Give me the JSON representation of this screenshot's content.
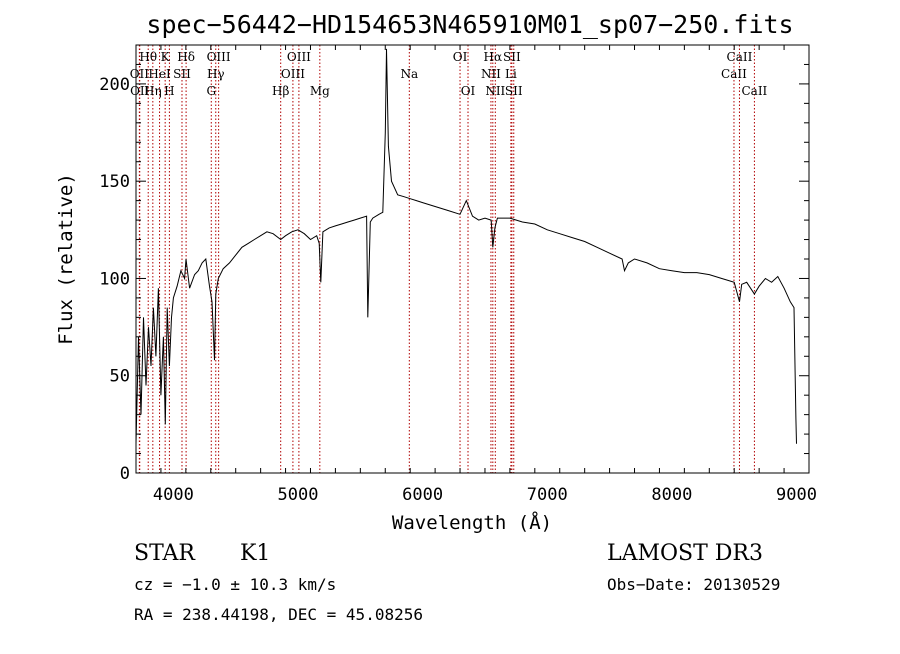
{
  "chart_data": {
    "type": "line",
    "title": "spec−56442−HD154653N465910M01_sp07−250.fits",
    "xlabel": "Wavelength (Å)",
    "ylabel": "Flux (relative)",
    "xlim": [
      3700,
      9100
    ],
    "ylim": [
      0,
      220
    ],
    "xticks": [
      4000,
      5000,
      6000,
      7000,
      8000,
      9000
    ],
    "yticks": [
      0,
      50,
      100,
      150,
      200
    ],
    "series": [
      {
        "name": "spectrum",
        "x": [
          3700,
          3720,
          3740,
          3760,
          3780,
          3800,
          3820,
          3840,
          3860,
          3880,
          3900,
          3920,
          3935,
          3950,
          3968,
          3985,
          4000,
          4030,
          4060,
          4090,
          4101,
          4130,
          4170,
          4200,
          4230,
          4260,
          4290,
          4310,
          4330,
          4340,
          4360,
          4400,
          4450,
          4500,
          4550,
          4600,
          4650,
          4700,
          4750,
          4800,
          4861,
          4900,
          4950,
          5000,
          5050,
          5100,
          5150,
          5170,
          5183,
          5200,
          5250,
          5300,
          5350,
          5400,
          5450,
          5500,
          5550,
          5560,
          5580,
          5600,
          5650,
          5680,
          5700,
          5710,
          5725,
          5750,
          5800,
          5850,
          5900,
          5950,
          6000,
          6100,
          6200,
          6300,
          6350,
          6400,
          6450,
          6500,
          6550,
          6563,
          6580,
          6600,
          6700,
          6800,
          6900,
          7000,
          7100,
          7200,
          7300,
          7400,
          7500,
          7600,
          7620,
          7650,
          7700,
          7800,
          7900,
          8000,
          8100,
          8200,
          8300,
          8400,
          8450,
          8500,
          8542,
          8560,
          8600,
          8662,
          8700,
          8750,
          8800,
          8850,
          8900,
          8950,
          8980,
          8995,
          9000
        ],
        "values": [
          15,
          70,
          30,
          80,
          45,
          75,
          55,
          85,
          60,
          95,
          40,
          70,
          25,
          85,
          55,
          80,
          90,
          96,
          104,
          100,
          110,
          95,
          102,
          104,
          108,
          110,
          96,
          88,
          58,
          92,
          100,
          105,
          108,
          112,
          116,
          118,
          120,
          122,
          124,
          123,
          120,
          122,
          124,
          125,
          123,
          120,
          122,
          118,
          98,
          124,
          126,
          127,
          128,
          129,
          130,
          131,
          132,
          80,
          129,
          131,
          133,
          134,
          175,
          218,
          168,
          150,
          143,
          142,
          141,
          140,
          139,
          137,
          135,
          133,
          140,
          132,
          130,
          131,
          130,
          116,
          126,
          131,
          131,
          129,
          128,
          125,
          123,
          121,
          119,
          116,
          113,
          110,
          104,
          108,
          110,
          108,
          105,
          104,
          103,
          103,
          102,
          100,
          99,
          98,
          88,
          97,
          98,
          92,
          96,
          100,
          98,
          101,
          95,
          88,
          85,
          28,
          15
        ]
      }
    ],
    "emission_lines": [
      {
        "label": "Hθ",
        "x": 3798,
        "row": 0
      },
      {
        "label": "OII",
        "x": 3727,
        "row": 1
      },
      {
        "label": "OII",
        "x": 3730,
        "row": 2
      },
      {
        "label": "Hη",
        "x": 3835,
        "row": 2
      },
      {
        "label": "HeI",
        "x": 3889,
        "row": 1
      },
      {
        "label": "K",
        "x": 3934,
        "row": 0
      },
      {
        "label": "H",
        "x": 3968,
        "row": 2
      },
      {
        "label": "SII",
        "x": 4069,
        "row": 1
      },
      {
        "label": "Hδ",
        "x": 4102,
        "row": 0
      },
      {
        "label": "OIII",
        "x": 4363,
        "row": 0
      },
      {
        "label": "Hγ",
        "x": 4340,
        "row": 1
      },
      {
        "label": "G",
        "x": 4304,
        "row": 2
      },
      {
        "label": "OIII",
        "x": 5007,
        "row": 0
      },
      {
        "label": "OIII",
        "x": 4959,
        "row": 1
      },
      {
        "label": "Hβ",
        "x": 4861,
        "row": 2
      },
      {
        "label": "Mg",
        "x": 5175,
        "row": 2
      },
      {
        "label": "Na",
        "x": 5893,
        "row": 1
      },
      {
        "label": "OI",
        "x": 6300,
        "row": 0
      },
      {
        "label": "OI",
        "x": 6364,
        "row": 2
      },
      {
        "label": "Hα",
        "x": 6563,
        "row": 0
      },
      {
        "label": "SII",
        "x": 6716,
        "row": 0
      },
      {
        "label": "NII",
        "x": 6548,
        "row": 1
      },
      {
        "label": "Li",
        "x": 6708,
        "row": 1
      },
      {
        "label": "NII",
        "x": 6583,
        "row": 2
      },
      {
        "label": "SII",
        "x": 6731,
        "row": 2
      },
      {
        "label": "CaII",
        "x": 8542,
        "row": 0
      },
      {
        "label": "CaII",
        "x": 8498,
        "row": 1
      },
      {
        "label": "CaII",
        "x": 8662,
        "row": 2
      }
    ]
  },
  "info": {
    "object_class": "STAR",
    "subclass": "K1",
    "survey": "LAMOST DR3",
    "cz": "cz = −1.0 ± 10.3 km/s",
    "obs_date": "Obs−Date: 20130529",
    "coords": "RA = 238.44198, DEC =  45.08256"
  },
  "colors": {
    "line_markers": "#b00000",
    "spectrum": "#000000"
  }
}
